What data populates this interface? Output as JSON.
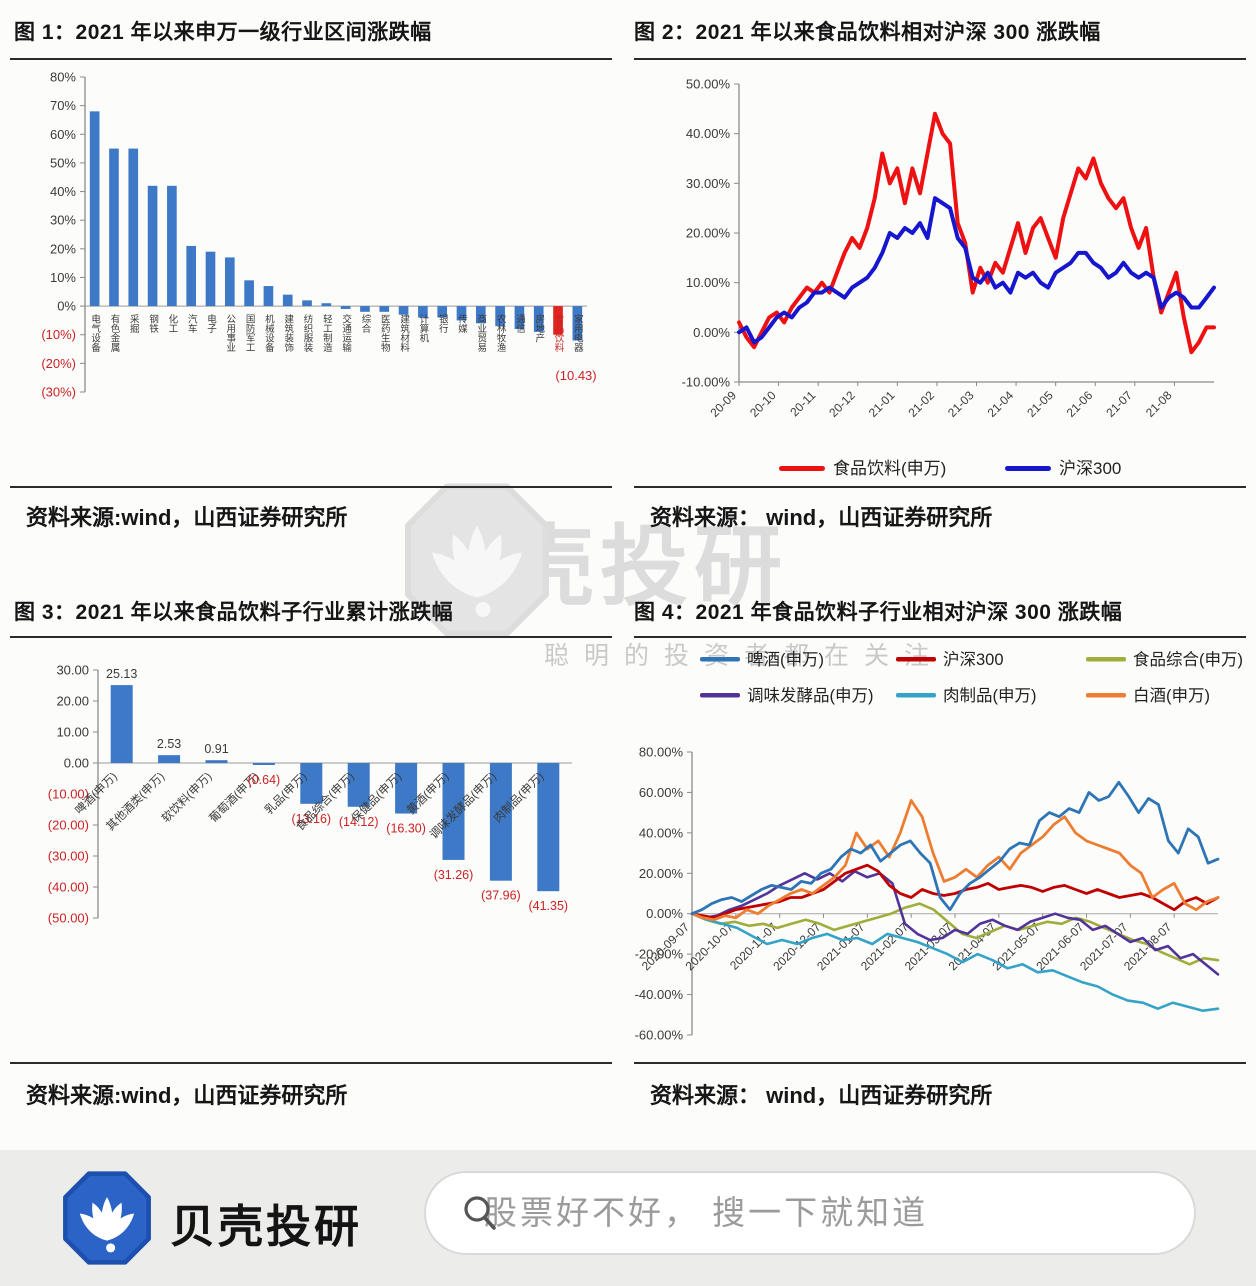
{
  "page": {
    "background": "#fcfcfb"
  },
  "figures": [
    {
      "title": "图 1：2021 年以来申万一级行业区间涨跌幅",
      "source": "资料来源:wind，山西证券研究所"
    },
    {
      "title": "图 2：2021 年以来食品饮料相对沪深 300 涨跌幅",
      "source": "资料来源： wind，山西证券研究所"
    },
    {
      "title": "图 3：2021 年以来食品饮料子行业累计涨跌幅",
      "source": "资料来源:wind，山西证券研究所"
    },
    {
      "title": "图 4：2021 年食品饮料子行业相对沪深 300 涨跌幅",
      "source": "资料来源： wind，山西证券研究所"
    }
  ],
  "watermark": {
    "brand": "贝壳投研",
    "slogan": "聪明的投资者都在关注"
  },
  "footer": {
    "brand": "贝壳投研",
    "search_placeholder": "股票好不好， 搜一下就知道",
    "logo_color": "#2b63c6",
    "background": "#ececea",
    "icons": {
      "search": "magnifier",
      "brand_logo": "shell-fan"
    }
  },
  "chart_data": [
    {
      "type": "bar",
      "title": "图 1：2021 年以来申万一级行业区间涨跌幅",
      "categories": [
        "电气设备",
        "有色金属",
        "采掘",
        "钢铁",
        "化工",
        "汽车",
        "电子",
        "公用事业",
        "国防军工",
        "机械设备",
        "建筑装饰",
        "纺织服装",
        "轻工制造",
        "交通运输",
        "综合",
        "医药生物",
        "建筑材料",
        "计算机",
        "银行",
        "传媒",
        "商业贸易",
        "农林牧渔",
        "通信",
        "房地产",
        "食品饮料",
        "家用电器"
      ],
      "values": [
        68,
        55,
        55,
        42,
        42,
        21,
        19,
        17,
        9,
        7,
        4,
        2,
        1,
        -1,
        -2,
        -2,
        -3,
        -4,
        -4,
        -5,
        -6,
        -7,
        -8,
        -9,
        -10,
        -12
      ],
      "bar_color": "#3d79c6",
      "highlight": {
        "index": 24,
        "color": "#e02421",
        "annotation": "(10.43)"
      },
      "ylim": [
        -30,
        80
      ],
      "yticks": [
        80,
        70,
        60,
        50,
        40,
        30,
        20,
        10,
        0,
        -10,
        -20,
        -30
      ],
      "tick_format": "pct0",
      "label_style": "vertical",
      "show_values": false,
      "grid": false,
      "xlabel": "",
      "ylabel": ""
    },
    {
      "type": "line",
      "title": "图 2：2021 年以来食品饮料相对沪深 300 涨跌幅",
      "x_labels": [
        "20-09",
        "20-10",
        "20-11",
        "20-12",
        "21-01",
        "21-02",
        "21-03",
        "21-04",
        "21-05",
        "21-06",
        "21-07",
        "21-08"
      ],
      "ylim": [
        -10,
        50
      ],
      "yticks": [
        50,
        40,
        30,
        20,
        10,
        0,
        -10
      ],
      "tick_format": "pct2",
      "grid": false,
      "bottom_axis": true,
      "xlabels_at_zero": false,
      "zero_line": false,
      "legend": {
        "position": "bottom",
        "rows": [
          [
            0,
            1
          ]
        ]
      },
      "series": [
        {
          "name": "食品饮料(申万)",
          "color": "#ee1111",
          "width": 4,
          "values": [
            2,
            -1,
            -3,
            0,
            3,
            4,
            2,
            5,
            7,
            9,
            8,
            10,
            8,
            12,
            16,
            19,
            17,
            21,
            27,
            36,
            30,
            33,
            26,
            33,
            28,
            36,
            44,
            40,
            38,
            22,
            18,
            8,
            13,
            10,
            14,
            12,
            17,
            22,
            16,
            21,
            23,
            19,
            15,
            23,
            28,
            33,
            31,
            35,
            30,
            27,
            25,
            27,
            21,
            17,
            21,
            11,
            4,
            8,
            12,
            3,
            -4,
            -2,
            1,
            1
          ]
        },
        {
          "name": "沪深300",
          "color": "#1616cf",
          "width": 4,
          "values": [
            0,
            1,
            -2,
            -1,
            1,
            3,
            4,
            3,
            5,
            6,
            8,
            8,
            9,
            8,
            7,
            9,
            10,
            11,
            13,
            16,
            20,
            19,
            21,
            20,
            22,
            19,
            27,
            26,
            25,
            19,
            17,
            11,
            10,
            12,
            9,
            10,
            8,
            12,
            11,
            12,
            10,
            9,
            12,
            13,
            14,
            16,
            16,
            14,
            13,
            11,
            12,
            14,
            12,
            11,
            12,
            11,
            5,
            7,
            8,
            7,
            5,
            5,
            7,
            9
          ]
        }
      ]
    },
    {
      "type": "bar",
      "title": "图 3：2021 年以来食品饮料子行业累计涨跌幅",
      "categories": [
        "啤酒(申万)",
        "其他酒类(申万)",
        "软饮料(申万)",
        "葡萄酒(申万)",
        "乳品(申万)",
        "食品综合(申万)",
        "保健品(申万)",
        "黄酒(申万)",
        "调味发酵品(申万)",
        "肉制品(申万)"
      ],
      "values": [
        25.13,
        2.53,
        0.91,
        -0.64,
        -13.16,
        -14.12,
        -16.3,
        -31.26,
        -37.96,
        -41.35
      ],
      "bar_color": "#3d79c6",
      "ylim": [
        -50,
        30
      ],
      "yticks": [
        30,
        20,
        10,
        0,
        -10,
        -20,
        -30,
        -40,
        -50
      ],
      "tick_format": "num2",
      "label_style": "rotated",
      "show_values": true,
      "grid": false,
      "xlabel": "",
      "ylabel": ""
    },
    {
      "type": "line",
      "title": "图 4：2021 年食品饮料子行业相对沪深 300 涨跌幅",
      "x_labels": [
        "2020-09-07",
        "2020-10-07",
        "2020-11-07",
        "2020-12-07",
        "2021-01-07",
        "2021-02-07",
        "2021-03-07",
        "2021-04-07",
        "2021-05-07",
        "2021-06-07",
        "2021-07-07",
        "2021-08-07"
      ],
      "ylim": [
        -60,
        80
      ],
      "yticks": [
        80,
        60,
        40,
        20,
        0,
        -20,
        -40,
        -60
      ],
      "tick_format": "pct2",
      "grid": false,
      "bottom_axis": false,
      "xlabels_at_zero": true,
      "zero_line": true,
      "legend": {
        "position": "top",
        "rows": [
          [
            5,
            3,
            0
          ],
          [
            2,
            1,
            4
          ]
        ]
      },
      "series": [
        {
          "name": "食品综合(申万)",
          "color": "#9fae3a",
          "width": 2.6,
          "values": [
            0,
            -3,
            -5,
            -4,
            -6,
            -5,
            -7,
            -5,
            -3,
            -5,
            -8,
            -6,
            -4,
            -2,
            0,
            3,
            5,
            2,
            -4,
            -10,
            -12,
            -9,
            -6,
            -8,
            -6,
            -4,
            -5,
            -2,
            -4,
            -7,
            -10,
            -13,
            -15,
            -19,
            -22,
            -25,
            -22,
            -23
          ]
        },
        {
          "name": "肉制品(申万)",
          "color": "#35a3c8",
          "width": 2.6,
          "values": [
            0,
            -3,
            -5,
            -7,
            -11,
            -15,
            -13,
            -15,
            -12,
            -10,
            -13,
            -12,
            -15,
            -10,
            -12,
            -14,
            -17,
            -20,
            -24,
            -20,
            -23,
            -27,
            -25,
            -29,
            -28,
            -31,
            -34,
            -36,
            -40,
            -43,
            -44,
            -47,
            -44,
            -46,
            -48,
            -47
          ]
        },
        {
          "name": "调味发酵品(申万)",
          "color": "#523399",
          "width": 2.6,
          "values": [
            0,
            -2,
            -1,
            2,
            4,
            7,
            10,
            14,
            17,
            20,
            17,
            20,
            16,
            21,
            18,
            20,
            15,
            -5,
            -10,
            -13,
            -12,
            -8,
            -10,
            -5,
            -3,
            -6,
            -8,
            -4,
            -2,
            0,
            -2,
            -3,
            -8,
            -6,
            -10,
            -14,
            -12,
            -18,
            -16,
            -22,
            -20,
            -25,
            -30
          ]
        },
        {
          "name": "沪深300",
          "color": "#c00000",
          "width": 2.8,
          "values": [
            0,
            -1,
            -2,
            0,
            2,
            3,
            4,
            5,
            6,
            8,
            8,
            10,
            12,
            16,
            20,
            22,
            24,
            21,
            14,
            10,
            8,
            12,
            10,
            9,
            10,
            12,
            13,
            15,
            12,
            13,
            14,
            13,
            11,
            13,
            14,
            12,
            10,
            12,
            10,
            8,
            9,
            10,
            8,
            5,
            2,
            6,
            8,
            5,
            8
          ]
        },
        {
          "name": "白酒(申万)",
          "color": "#ed7d31",
          "width": 2.8,
          "values": [
            0,
            -2,
            -3,
            -1,
            -2,
            2,
            0,
            4,
            7,
            10,
            12,
            10,
            14,
            18,
            24,
            40,
            32,
            36,
            28,
            40,
            56,
            48,
            30,
            16,
            18,
            22,
            18,
            24,
            28,
            22,
            30,
            34,
            38,
            44,
            48,
            40,
            36,
            34,
            32,
            30,
            24,
            20,
            8,
            12,
            15,
            5,
            2,
            6,
            8
          ]
        },
        {
          "name": "啤酒(申万)",
          "color": "#2e75b6",
          "width": 2.8,
          "values": [
            0,
            2,
            5,
            7,
            8,
            6,
            9,
            12,
            14,
            13,
            12,
            16,
            15,
            20,
            22,
            28,
            32,
            30,
            34,
            26,
            30,
            34,
            36,
            30,
            25,
            8,
            2,
            10,
            15,
            18,
            22,
            26,
            32,
            35,
            34,
            46,
            50,
            48,
            52,
            50,
            60,
            56,
            58,
            65,
            58,
            50,
            57,
            54,
            36,
            30,
            42,
            38,
            25,
            27
          ]
        }
      ]
    }
  ]
}
